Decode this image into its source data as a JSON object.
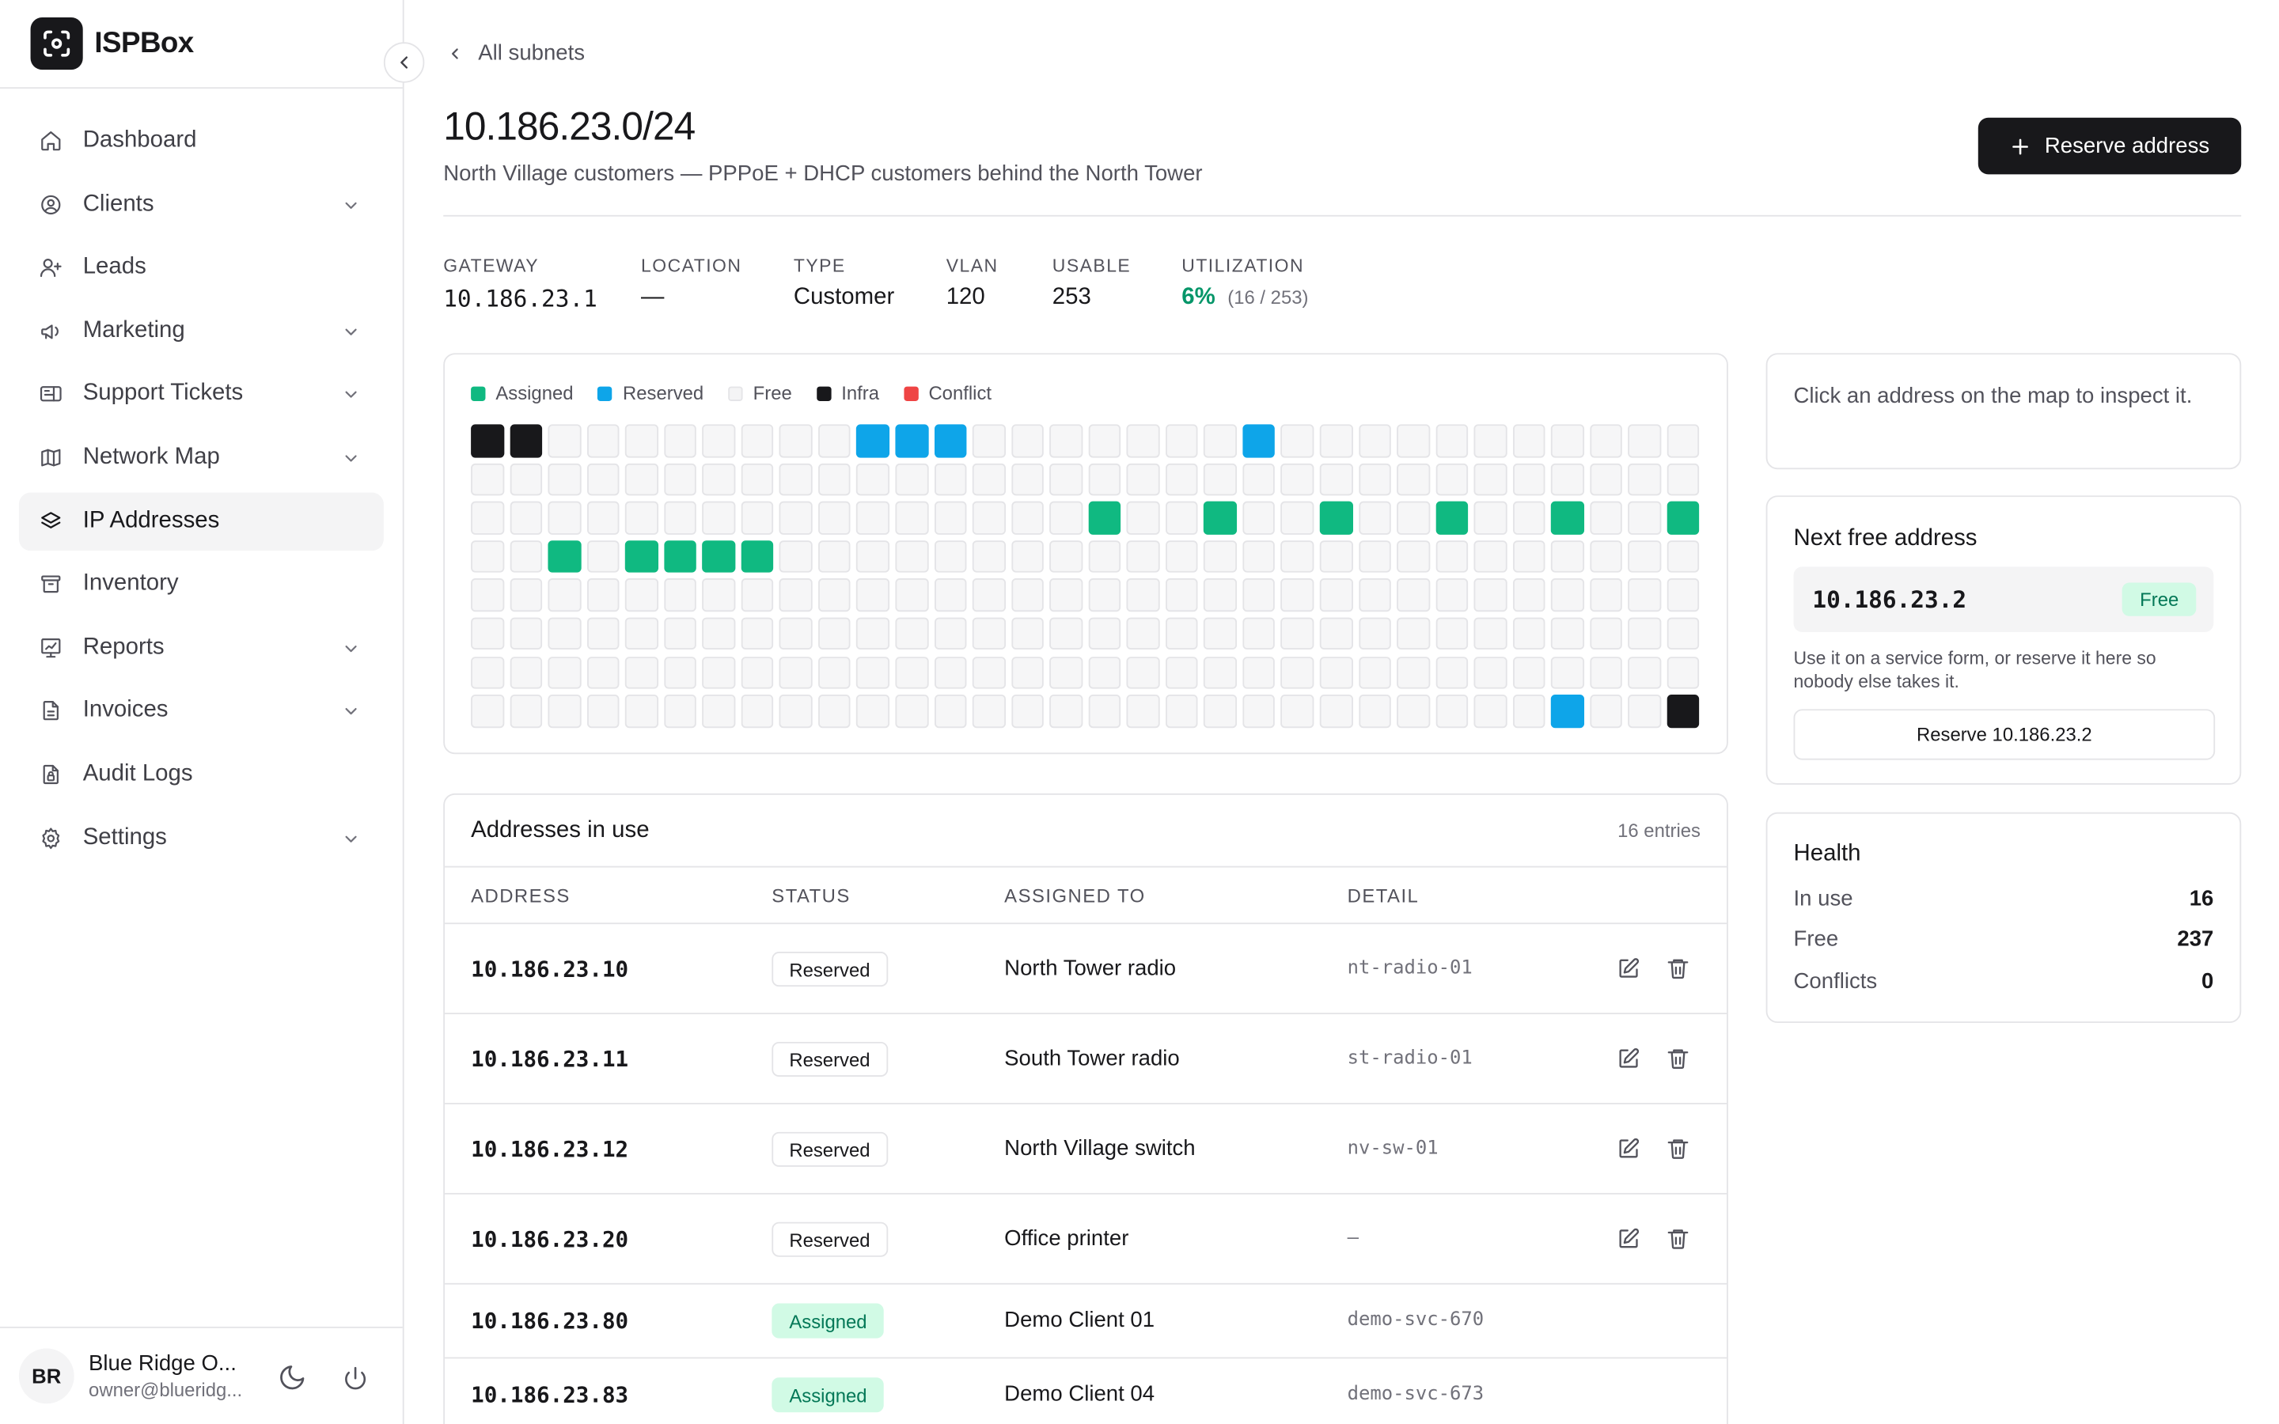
{
  "app": {
    "name": "ISPBox",
    "logo_icon": "focus-icon"
  },
  "sidebar": {
    "items": [
      {
        "label": "Dashboard",
        "icon": "home-icon",
        "expandable": false
      },
      {
        "label": "Clients",
        "icon": "user-circle-icon",
        "expandable": true
      },
      {
        "label": "Leads",
        "icon": "user-plus-icon",
        "expandable": false
      },
      {
        "label": "Marketing",
        "icon": "megaphone-icon",
        "expandable": true
      },
      {
        "label": "Support Tickets",
        "icon": "ticket-icon",
        "expandable": true
      },
      {
        "label": "Network Map",
        "icon": "map-icon",
        "expandable": true
      },
      {
        "label": "IP Addresses",
        "icon": "layers-icon",
        "expandable": false,
        "active": true
      },
      {
        "label": "Inventory",
        "icon": "archive-icon",
        "expandable": false
      },
      {
        "label": "Reports",
        "icon": "chart-icon",
        "expandable": true
      },
      {
        "label": "Invoices",
        "icon": "file-icon",
        "expandable": true
      },
      {
        "label": "Audit Logs",
        "icon": "file-lock-icon",
        "expandable": false
      },
      {
        "label": "Settings",
        "icon": "gear-icon",
        "expandable": true
      }
    ],
    "user": {
      "initials": "BR",
      "name": "Blue Ridge O...",
      "email": "owner@blueridg..."
    }
  },
  "header": {
    "back_label": "All subnets",
    "title": "10.186.23.0/24",
    "subtitle": "North Village customers — PPPoE + DHCP customers behind the North Tower",
    "primary_action": "Reserve address"
  },
  "stats": {
    "gateway": {
      "label": "GATEWAY",
      "value": "10.186.23.1"
    },
    "location": {
      "label": "LOCATION",
      "value": "—"
    },
    "type": {
      "label": "TYPE",
      "value": "Customer"
    },
    "vlan": {
      "label": "VLAN",
      "value": "120"
    },
    "usable": {
      "label": "USABLE",
      "value": "253"
    },
    "utilization": {
      "label": "UTILIZATION",
      "percent": "6%",
      "fraction": "(16 / 253)"
    }
  },
  "map": {
    "legend": [
      {
        "label": "Assigned",
        "color": "#10b981"
      },
      {
        "label": "Reserved",
        "color": "#0ea5e9"
      },
      {
        "label": "Free",
        "color": "#f4f4f5"
      },
      {
        "label": "Infra",
        "color": "#18181b"
      },
      {
        "label": "Conflict",
        "color": "#ef4444"
      }
    ],
    "columns": 32,
    "rows": 8,
    "cells": {
      "infra": [
        0,
        1,
        255
      ],
      "reserved": [
        10,
        11,
        12,
        20,
        252
      ],
      "assigned": [
        80,
        83,
        86,
        89,
        92,
        95,
        98,
        100,
        101,
        102,
        103
      ]
    }
  },
  "table": {
    "title": "Addresses in use",
    "count": "16 entries",
    "columns": [
      "ADDRESS",
      "STATUS",
      "ASSIGNED TO",
      "DETAIL"
    ],
    "rows": [
      {
        "address": "10.186.23.10",
        "status": "Reserved",
        "assigned_to": "North Tower radio",
        "detail": "nt-radio-01",
        "editable": true
      },
      {
        "address": "10.186.23.11",
        "status": "Reserved",
        "assigned_to": "South Tower radio",
        "detail": "st-radio-01",
        "editable": true
      },
      {
        "address": "10.186.23.12",
        "status": "Reserved",
        "assigned_to": "North Village switch",
        "detail": "nv-sw-01",
        "editable": true
      },
      {
        "address": "10.186.23.20",
        "status": "Reserved",
        "assigned_to": "Office printer",
        "detail": "—",
        "editable": true
      },
      {
        "address": "10.186.23.80",
        "status": "Assigned",
        "assigned_to": "Demo Client 01",
        "detail": "demo-svc-670",
        "editable": false
      },
      {
        "address": "10.186.23.83",
        "status": "Assigned",
        "assigned_to": "Demo Client 04",
        "detail": "demo-svc-673",
        "editable": false
      }
    ]
  },
  "inspect": {
    "hint": "Click an address on the map to inspect it."
  },
  "next_free": {
    "title": "Next free address",
    "address": "10.186.23.2",
    "badge": "Free",
    "help": "Use it on a service form, or reserve it here so nobody else takes it.",
    "button": "Reserve 10.186.23.2"
  },
  "health": {
    "title": "Health",
    "rows": [
      {
        "label": "In use",
        "value": "16"
      },
      {
        "label": "Free",
        "value": "237"
      },
      {
        "label": "Conflicts",
        "value": "0"
      }
    ]
  }
}
